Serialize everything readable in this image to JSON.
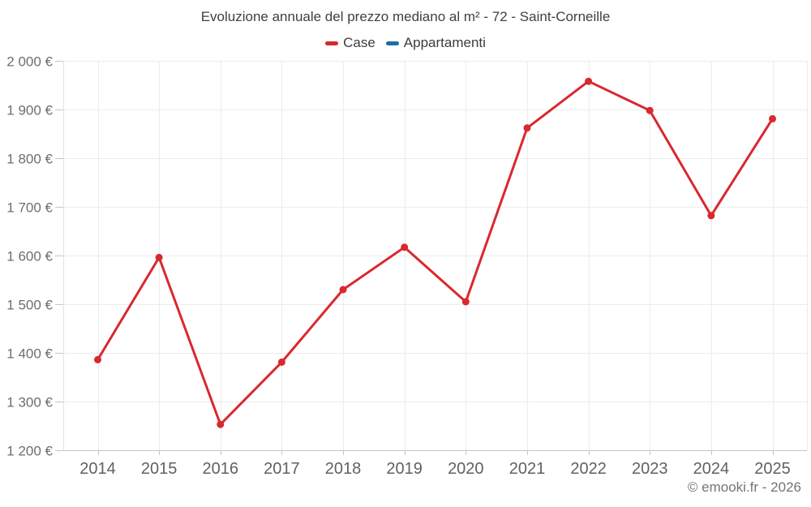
{
  "page": {
    "background": "#ffffff"
  },
  "header": {
    "title": "Evoluzione annuale del prezzo mediano al m² - 72 - Saint-Corneille"
  },
  "legend": {
    "items": [
      {
        "label": "Case",
        "color": "#d9282e"
      },
      {
        "label": "Appartamenti",
        "color": "#186fa5"
      }
    ]
  },
  "chart_data": {
    "type": "line",
    "title": "Evoluzione annuale del prezzo mediano al m² - 72 - Saint-Corneille",
    "categories": [
      "2014",
      "2015",
      "2016",
      "2017",
      "2018",
      "2019",
      "2020",
      "2021",
      "2022",
      "2023",
      "2024",
      "2025"
    ],
    "series": [
      {
        "name": "Case",
        "color": "#d9282e",
        "values": [
          1386,
          1596,
          1253,
          1381,
          1530,
          1617,
          1505,
          1862,
          1958,
          1898,
          1682,
          1881
        ]
      },
      {
        "name": "Appartamenti",
        "color": "#186fa5",
        "values": []
      }
    ],
    "xlabel": "",
    "ylabel": "",
    "ylim": [
      1200,
      2000
    ],
    "ytick_step": 100,
    "ytick_labels": [
      "1 200 €",
      "1 300 €",
      "1 400 €",
      "1 500 €",
      "1 600 €",
      "1 700 €",
      "1 800 €",
      "1 900 €",
      "2 000 €"
    ],
    "grid": true,
    "legend_position": "top",
    "colors": {
      "grid_line": "#ececec",
      "axis_line_bottom": "#c6c6c6",
      "axis_line_left": "#e4e4e4",
      "tick": "#c6c6c6",
      "y_label": "#6e6e6e",
      "x_label": "#616161"
    }
  },
  "footer": {
    "credit": "© emooki.fr - 2026"
  }
}
